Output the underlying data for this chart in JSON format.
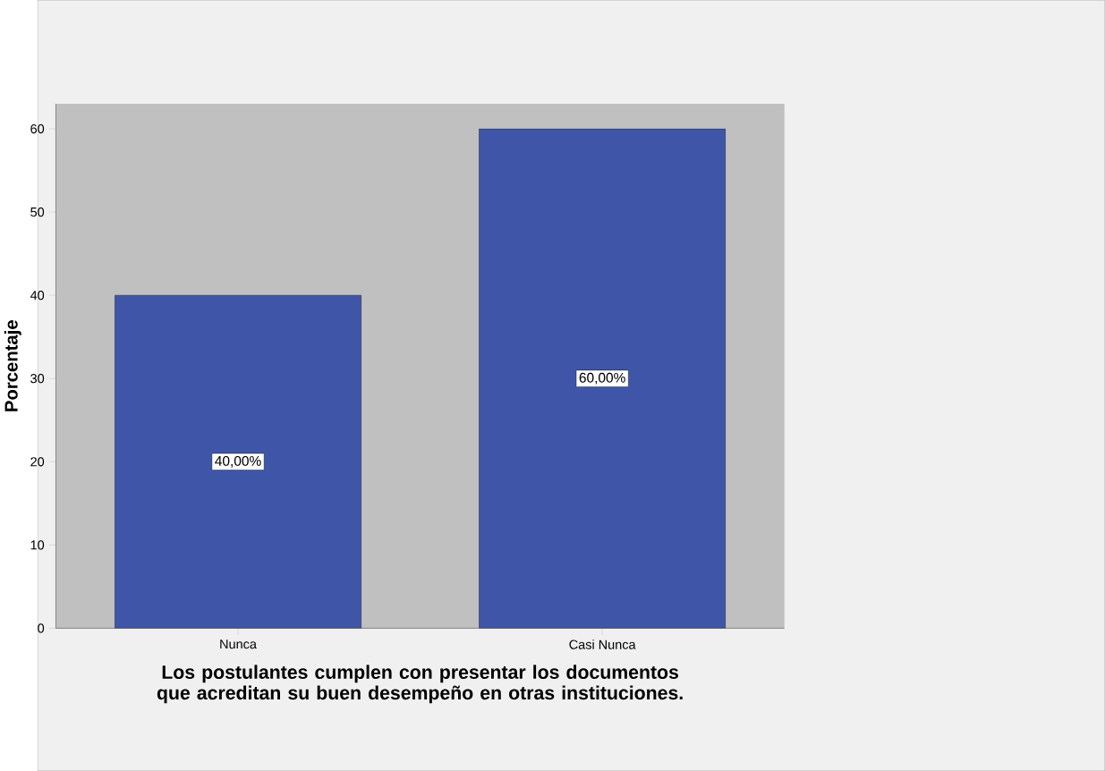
{
  "chart_data": {
    "type": "bar",
    "xlabel": "Los postulantes cumplen con presentar los documentos que acreditan su buen desempeño en otras instituciones.",
    "ylabel": "Porcentaje",
    "categories": [
      "Nunca",
      "Casi Nunca"
    ],
    "values": [
      40,
      60
    ],
    "value_labels": [
      "40,00%",
      "60,00%"
    ],
    "color": "#3f56a8",
    "ylim": [
      0,
      63
    ],
    "yticks": [
      0,
      10,
      20,
      30,
      40,
      50,
      60
    ]
  }
}
